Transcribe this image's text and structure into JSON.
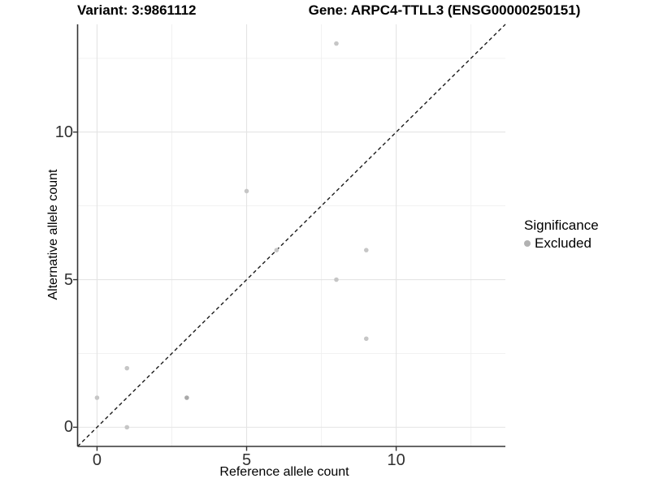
{
  "chart_data": {
    "type": "scatter",
    "title_left": "Variant: 3:9861112",
    "title_right": "Gene: ARPC4-TTLL3 (ENSG00000250151)",
    "xlabel": "Reference allele count",
    "ylabel": "Alternative allele count",
    "xlim": [
      -0.65,
      13.65
    ],
    "ylim": [
      -0.65,
      13.65
    ],
    "x_ticks": [
      0,
      5,
      10
    ],
    "y_ticks": [
      0,
      5,
      10
    ],
    "minor_grid_x": [
      2.5,
      7.5,
      12.5
    ],
    "minor_grid_y": [
      2.5,
      7.5,
      12.5
    ],
    "grid": true,
    "legend_position": "right",
    "identity_line": {
      "style": "dashed",
      "color": "#1a1a1a",
      "from": -0.65,
      "to": 13.65
    },
    "series": [
      {
        "name": "Excluded",
        "color": "#c6c6c6",
        "points": [
          {
            "x": 0,
            "y": 1,
            "color": "#c6c6c6"
          },
          {
            "x": 1,
            "y": 0,
            "color": "#c6c6c6"
          },
          {
            "x": 1,
            "y": 2,
            "color": "#c6c6c6"
          },
          {
            "x": 3,
            "y": 1,
            "color": "#a9a9a9"
          },
          {
            "x": 5,
            "y": 8,
            "color": "#c6c6c6"
          },
          {
            "x": 6,
            "y": 6,
            "color": "#c6c6c6"
          },
          {
            "x": 8,
            "y": 5,
            "color": "#c6c6c6"
          },
          {
            "x": 8,
            "y": 13,
            "color": "#c6c6c6"
          },
          {
            "x": 9,
            "y": 3,
            "color": "#c6c6c6"
          },
          {
            "x": 9,
            "y": 6,
            "color": "#c6c6c6"
          }
        ]
      }
    ],
    "colors": {
      "major_grid": "#e4e4e4",
      "minor_grid": "#f1f1f1",
      "axis_line": "#333333",
      "tick_mark": "#333333",
      "tick_label": "#303030"
    }
  },
  "legend": {
    "title": "Significance",
    "items": [
      {
        "label": "Excluded",
        "color": "#b2b2b2"
      }
    ]
  }
}
